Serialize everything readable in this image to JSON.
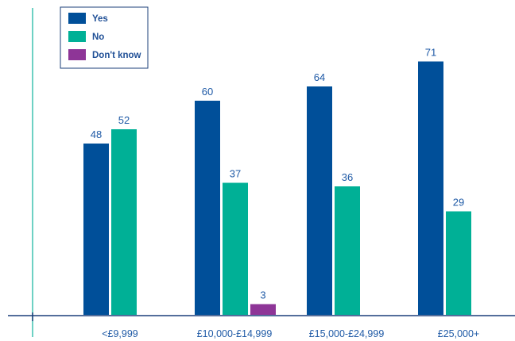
{
  "chart_data": {
    "type": "bar",
    "title": "",
    "xlabel": "",
    "ylabel": "",
    "ylim": [
      0,
      80
    ],
    "grid": false,
    "legend_position": "top-left",
    "categories": [
      "<£9,999",
      "£10,000-£14,999",
      "£15,000-£24,999",
      "£25,000+"
    ],
    "series": [
      {
        "name": "Yes",
        "color": "#004f99",
        "values": [
          48,
          60,
          64,
          71
        ]
      },
      {
        "name": "No",
        "color": "#00b096",
        "values": [
          52,
          37,
          36,
          29
        ]
      },
      {
        "name": "Don't know",
        "color": "#8e3597",
        "values": [
          null,
          3,
          null,
          null
        ]
      }
    ],
    "axis_color": "#1b3f7a",
    "left_axis_color": "#3fc2b0"
  }
}
